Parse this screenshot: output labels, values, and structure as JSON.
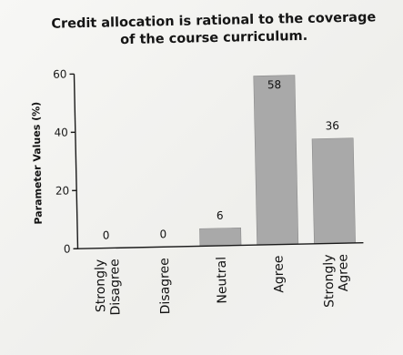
{
  "chart_data": {
    "type": "bar",
    "title_lines": [
      "Credit allocation is rational to the coverage",
      "of the course curriculum."
    ],
    "ylabel": "Parameter Values (%)",
    "xlabel": "",
    "ylim": [
      0,
      60
    ],
    "yticks": [
      0,
      20,
      40,
      60
    ],
    "categories": [
      [
        "Strongly",
        "Disagree"
      ],
      [
        "Disagree"
      ],
      [
        "Neutral"
      ],
      [
        "Agree"
      ],
      [
        "Strongly",
        "Agree"
      ]
    ],
    "values": [
      0,
      0,
      6,
      58,
      36
    ],
    "data_labels": [
      "0",
      "0",
      "6",
      "58",
      "36"
    ],
    "bar_color": "#a9a9a9",
    "grid": false,
    "legend": "none"
  }
}
